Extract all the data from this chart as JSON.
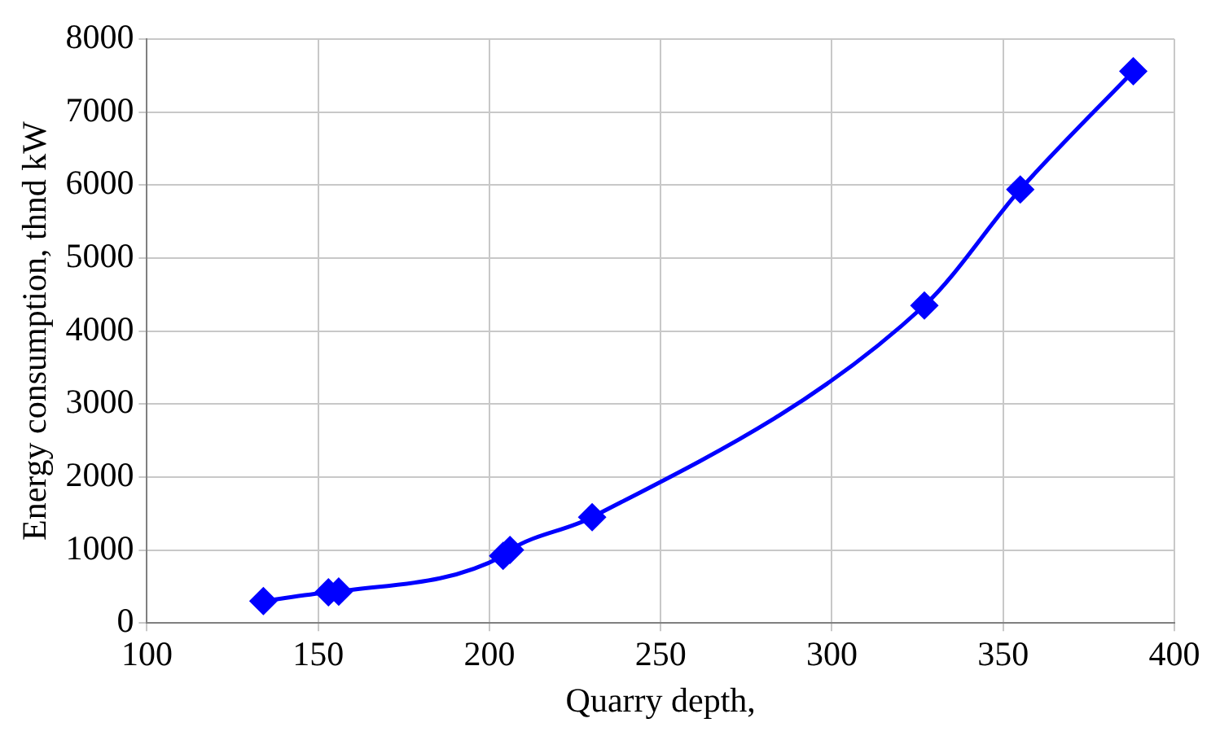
{
  "chart_data": {
    "type": "line",
    "xlabel": "Quarry depth,",
    "ylabel": "Energy consumption, thnd kW",
    "x": [
      134,
      153,
      156,
      204,
      206,
      230,
      327,
      355,
      388
    ],
    "series": [
      {
        "color": "#0000ff",
        "values": [
          300,
          420,
          430,
          920,
          1000,
          1450,
          4350,
          5940,
          7560
        ]
      }
    ],
    "xlim": [
      100,
      400
    ],
    "xticks": [
      100,
      150,
      200,
      250,
      300,
      350,
      400
    ],
    "ylim": [
      0,
      8000
    ],
    "yticks": [
      0,
      1000,
      2000,
      3000,
      4000,
      5000,
      6000,
      7000,
      8000
    ],
    "grid": true,
    "legend": false,
    "marker": "diamond",
    "line_style": "solid"
  }
}
